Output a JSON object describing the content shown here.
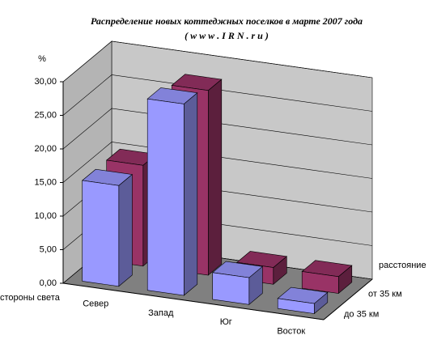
{
  "chart_data": {
    "type": "bar3d",
    "title": "Распределение новых коттеджных поселков в марте 2007 года",
    "subtitle": "( w w w . I R N . r u )",
    "y_label": "%",
    "x_label": "стороны света",
    "depth_label": "расстояние",
    "categories": [
      "Север",
      "Запад",
      "Юг",
      "Восток"
    ],
    "series": [
      {
        "name": "до 35 км",
        "color": "#9999ff",
        "values": [
          15,
          28.5,
          4,
          1.5
        ]
      },
      {
        "name": "от 35 км",
        "color": "#993366",
        "values": [
          15,
          27.5,
          2.5,
          2.5
        ]
      }
    ],
    "ylim": [
      0,
      30
    ],
    "yticks": [
      {
        "value": 0,
        "label": "0,00"
      },
      {
        "value": 5,
        "label": "5,00"
      },
      {
        "value": 10,
        "label": "10,00"
      },
      {
        "value": 15,
        "label": "15,00"
      },
      {
        "value": 20,
        "label": "20,00"
      },
      {
        "value": 25,
        "label": "25,00"
      },
      {
        "value": 30,
        "label": "30,00"
      }
    ],
    "grid": true
  }
}
